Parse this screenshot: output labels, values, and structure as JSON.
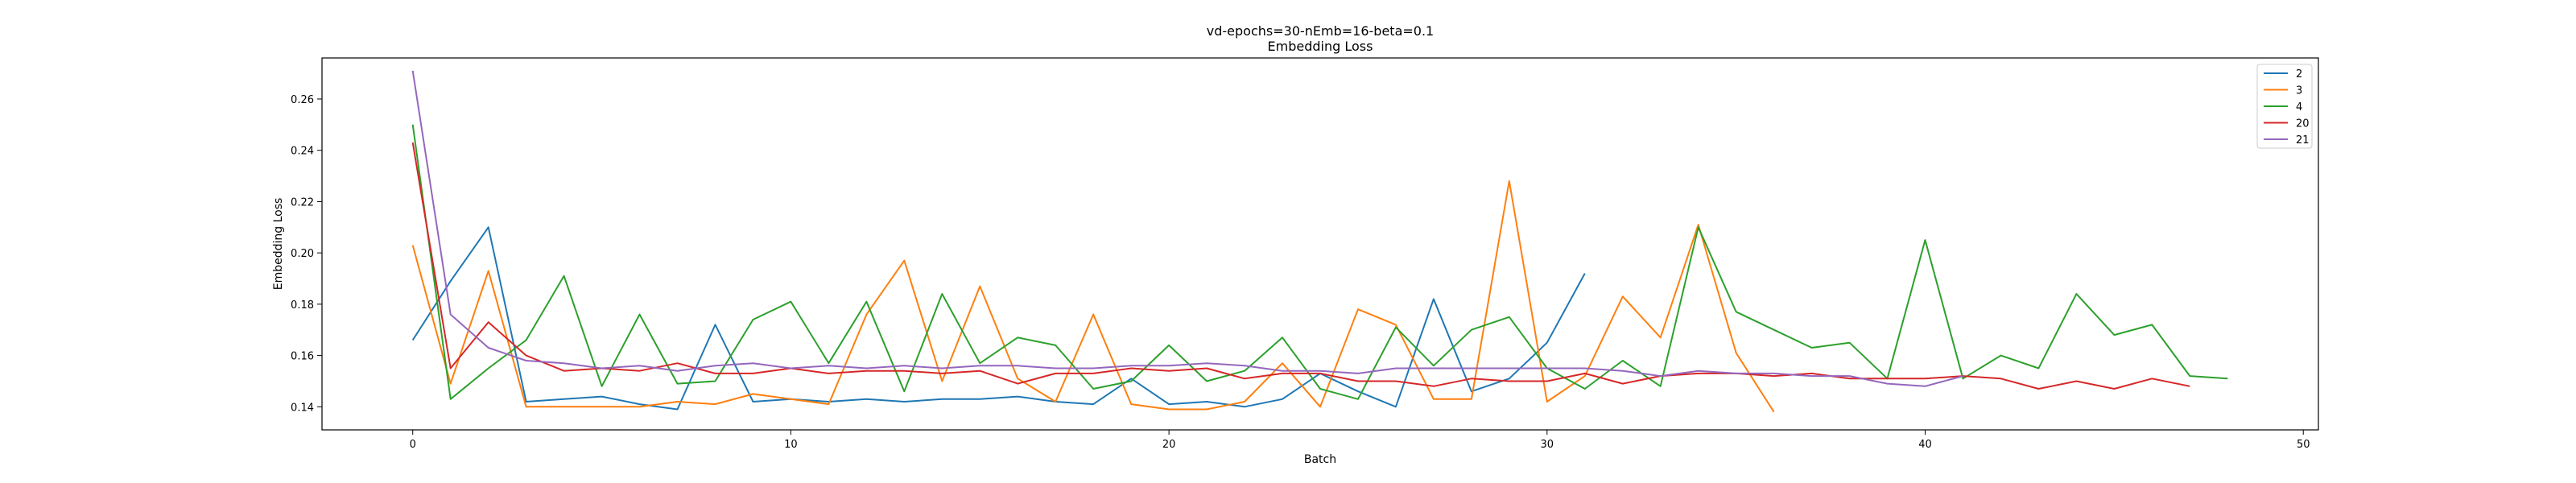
{
  "chart_data": {
    "type": "line",
    "title": "vd-epochs=30-nEmb=16-beta=0.1",
    "subtitle": "Embedding Loss",
    "xlabel": "Batch",
    "ylabel": "Embedding Loss",
    "xlim": [
      -2.4,
      50.4
    ],
    "ylim": [
      0.131,
      0.276
    ],
    "xticks": [
      0,
      10,
      20,
      30,
      40,
      50
    ],
    "yticks": [
      0.14,
      0.16,
      0.18,
      0.2,
      0.22,
      0.24,
      0.26
    ],
    "ytick_labels": [
      "0.14",
      "0.16",
      "0.18",
      "0.20",
      "0.22",
      "0.24",
      "0.26"
    ],
    "grid": false,
    "legend_position": "top-right",
    "series": [
      {
        "name": "2",
        "color": "#1f77b4",
        "values": [
          0.166,
          0.189,
          0.21,
          0.142,
          0.143,
          0.144,
          0.141,
          0.139,
          0.172,
          0.142,
          0.143,
          0.142,
          0.143,
          0.142,
          0.143,
          0.143,
          0.144,
          0.142,
          0.141,
          0.151,
          0.141,
          0.142,
          0.14,
          0.143,
          0.153,
          0.146,
          0.14,
          0.182,
          0.146,
          0.151,
          0.165,
          0.192
        ]
      },
      {
        "name": "3",
        "color": "#ff7f0e",
        "values": [
          0.203,
          0.149,
          0.193,
          0.14,
          0.14,
          0.14,
          0.14,
          0.142,
          0.141,
          0.145,
          0.143,
          0.141,
          0.176,
          0.197,
          0.15,
          0.187,
          0.151,
          0.142,
          0.176,
          0.141,
          0.139,
          0.139,
          0.142,
          0.157,
          0.14,
          0.178,
          0.172,
          0.143,
          0.143,
          0.228,
          0.142,
          0.152,
          0.183,
          0.167,
          0.211,
          0.161,
          0.138
        ]
      },
      {
        "name": "4",
        "color": "#2ca02c",
        "values": [
          0.25,
          0.143,
          0.155,
          0.166,
          0.191,
          0.148,
          0.176,
          0.149,
          0.15,
          0.174,
          0.181,
          0.157,
          0.181,
          0.146,
          0.184,
          0.157,
          0.167,
          0.164,
          0.147,
          0.15,
          0.164,
          0.15,
          0.154,
          0.167,
          0.147,
          0.143,
          0.171,
          0.156,
          0.17,
          0.175,
          0.155,
          0.147,
          0.158,
          0.148,
          0.21,
          0.177,
          0.17,
          0.163,
          0.165,
          0.151,
          0.205,
          0.151,
          0.16,
          0.155,
          0.184,
          0.168,
          0.172,
          0.152,
          0.151
        ]
      },
      {
        "name": "20",
        "color": "#d62728",
        "values": [
          0.243,
          0.155,
          0.173,
          0.16,
          0.154,
          0.155,
          0.154,
          0.157,
          0.153,
          0.153,
          0.155,
          0.153,
          0.154,
          0.154,
          0.153,
          0.154,
          0.149,
          0.153,
          0.153,
          0.155,
          0.154,
          0.155,
          0.151,
          0.153,
          0.153,
          0.15,
          0.15,
          0.148,
          0.151,
          0.15,
          0.15,
          0.153,
          0.149,
          0.152,
          0.153,
          0.153,
          0.152,
          0.153,
          0.151,
          0.151,
          0.151,
          0.152,
          0.151,
          0.147,
          0.15,
          0.147,
          0.151,
          0.148
        ]
      },
      {
        "name": "21",
        "color": "#9467bd",
        "values": [
          0.271,
          0.176,
          0.163,
          0.158,
          0.157,
          0.155,
          0.156,
          0.154,
          0.156,
          0.157,
          0.155,
          0.156,
          0.155,
          0.156,
          0.155,
          0.156,
          0.156,
          0.155,
          0.155,
          0.156,
          0.156,
          0.157,
          0.156,
          0.154,
          0.154,
          0.153,
          0.155,
          0.155,
          0.155,
          0.155,
          0.155,
          0.155,
          0.154,
          0.152,
          0.154,
          0.153,
          0.153,
          0.152,
          0.152,
          0.149,
          0.148,
          0.152
        ]
      }
    ]
  }
}
